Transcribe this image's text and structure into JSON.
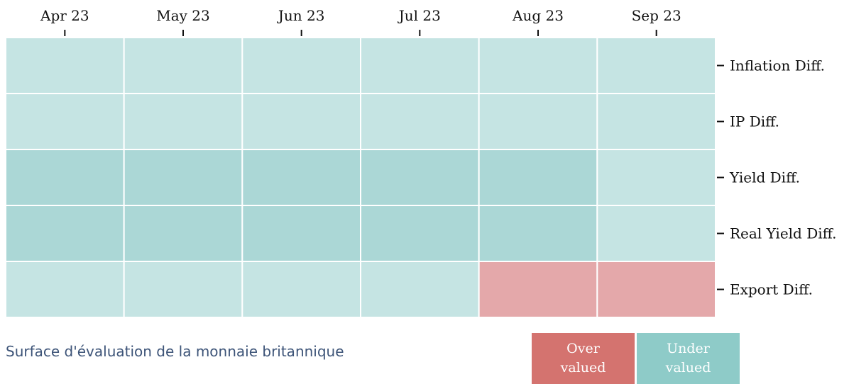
{
  "chart_data": {
    "type": "heatmap",
    "categories": [
      "Apr 23",
      "May 23",
      "Jun 23",
      "Jul 23",
      "Aug 23",
      "Sep 23"
    ],
    "rows": [
      "Inflation Diff.",
      "IP Diff.",
      "Yield Diff.",
      "Real Yield Diff.",
      "Export Diff."
    ],
    "cells": [
      [
        "#c5e4e3",
        "#c5e4e3",
        "#c5e4e3",
        "#c5e4e3",
        "#c5e4e3",
        "#c5e4e3"
      ],
      [
        "#c5e4e3",
        "#c5e4e3",
        "#c5e4e3",
        "#c5e4e3",
        "#c5e4e3",
        "#c5e4e3"
      ],
      [
        "#abd7d6",
        "#abd7d6",
        "#abd7d6",
        "#abd7d6",
        "#abd7d6",
        "#c5e4e3"
      ],
      [
        "#abd7d6",
        "#abd7d6",
        "#abd7d6",
        "#abd7d6",
        "#abd7d6",
        "#c5e4e3"
      ],
      [
        "#c5e4e3",
        "#c5e4e3",
        "#c5e4e3",
        "#c5e4e3",
        "#e4a8aa",
        "#e4a8aa"
      ]
    ],
    "caption": "Surface d'évaluation de la monnaie britannique",
    "legend": [
      {
        "name": "Over valued",
        "color": "#d4736f"
      },
      {
        "name": "Under valued",
        "color": "#8ecbc8"
      }
    ]
  }
}
